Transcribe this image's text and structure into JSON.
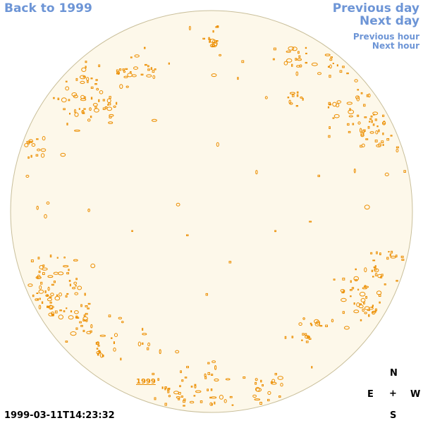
{
  "nav": {
    "back": "Back to 1999",
    "previous_day": "Previous day",
    "next_day": "Next day",
    "previous_hour": "Previous hour",
    "next_hour": "Next hour"
  },
  "map": {
    "year_label": "1999",
    "disk_fill": "#fdf8ea",
    "disk_stroke": "#c9bf9a",
    "contour_color": "#ec8e00"
  },
  "compass": {
    "n": "N",
    "e": "E",
    "center": "+",
    "w": "W",
    "s": "S"
  },
  "timestamp": "1999-03-11T14:23:32"
}
